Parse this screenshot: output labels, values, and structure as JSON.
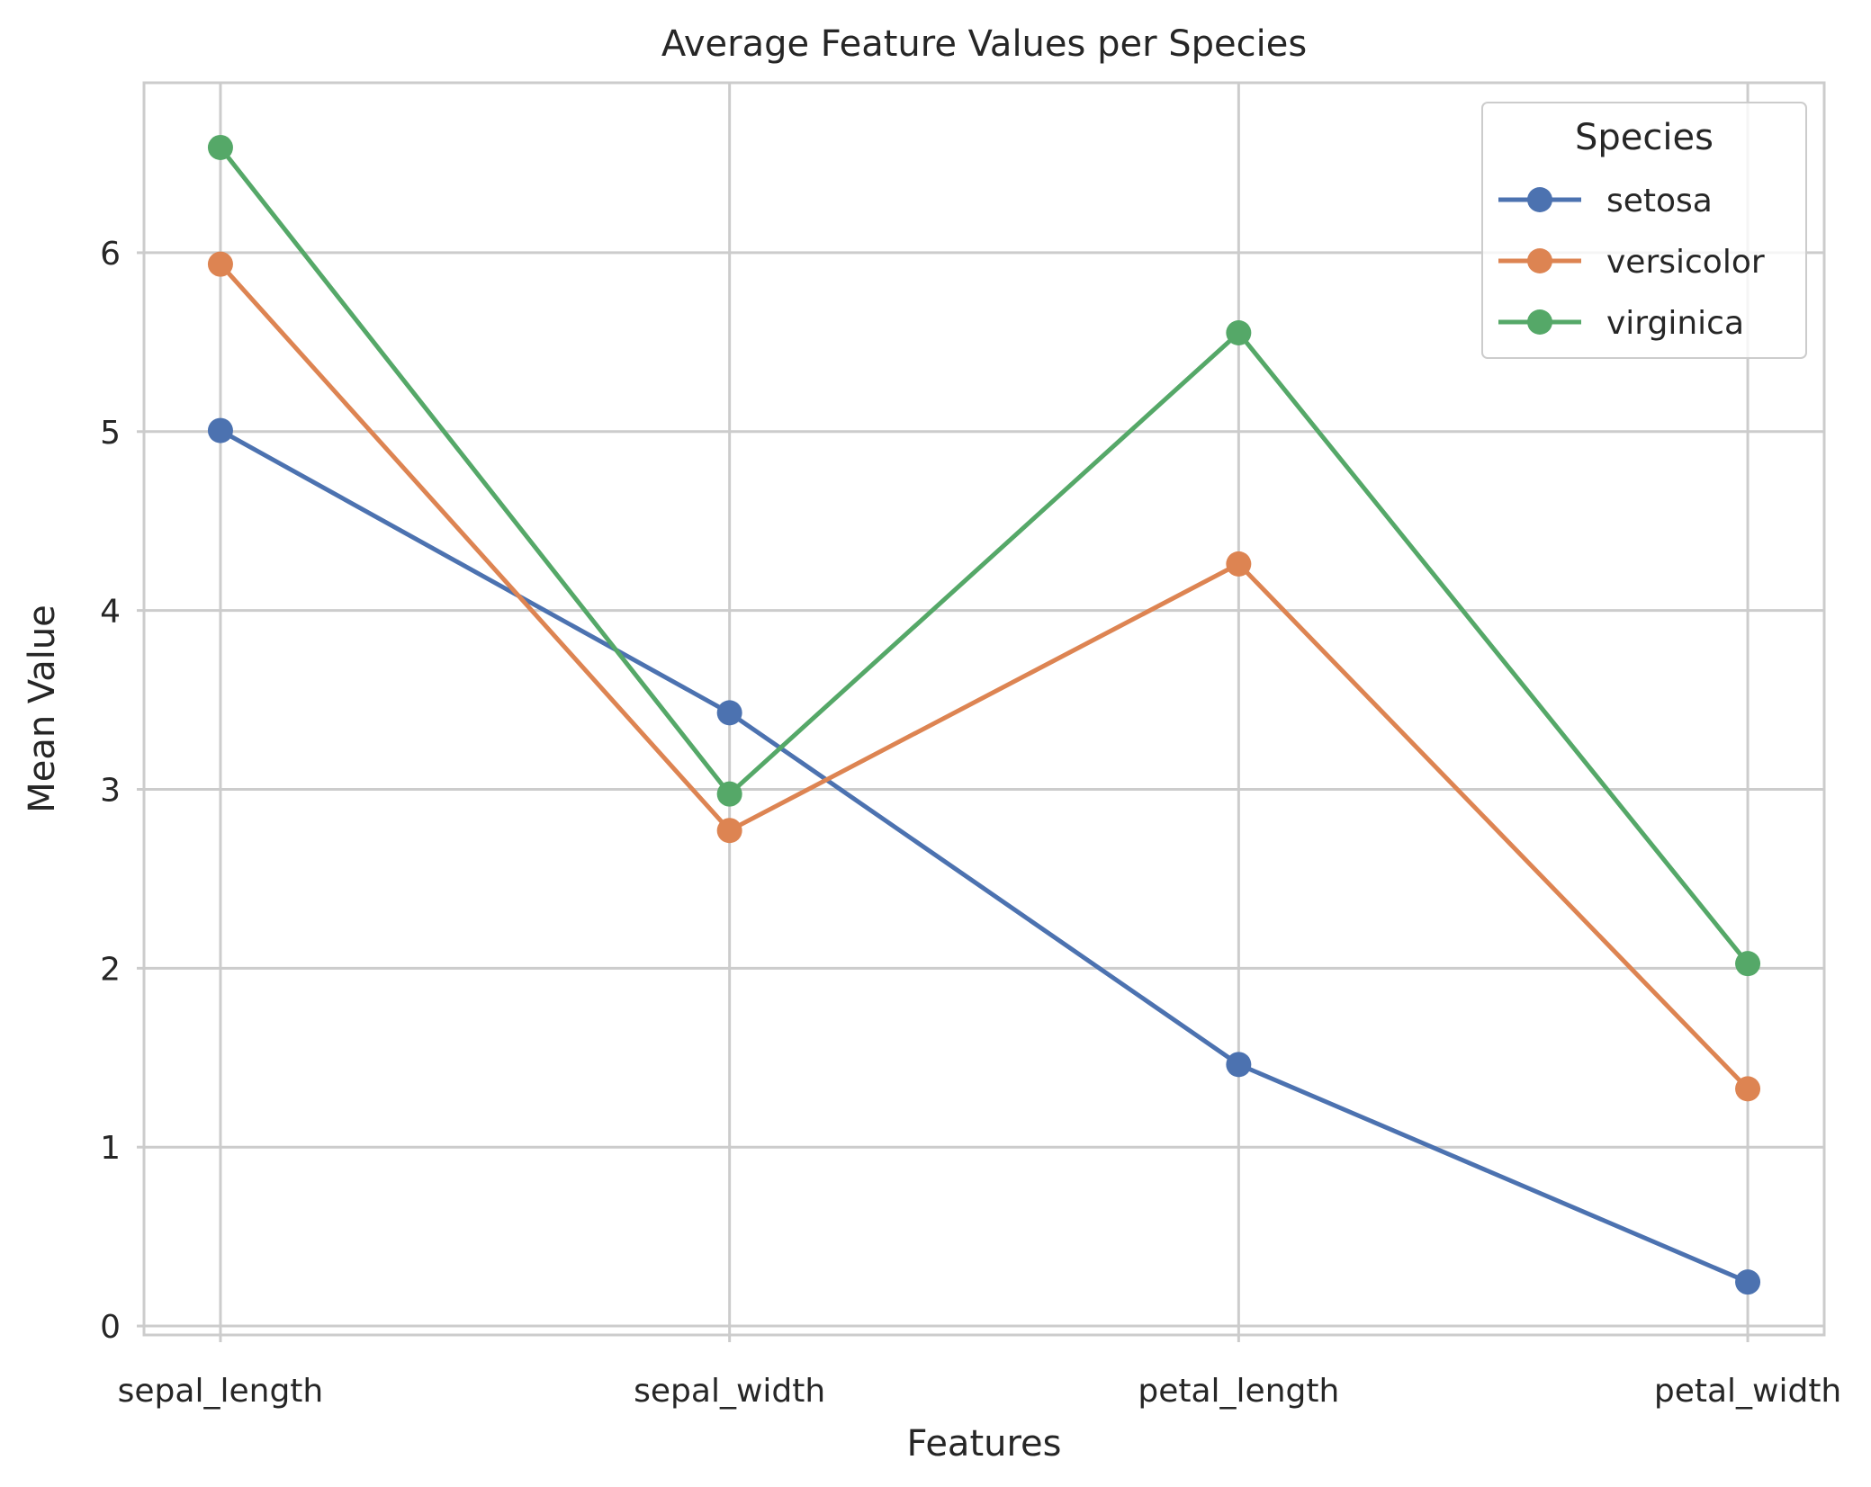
{
  "chart_data": {
    "type": "line",
    "title": "Average Feature Values per Species",
    "xlabel": "Features",
    "ylabel": "Mean Value",
    "categories": [
      "sepal_length",
      "sepal_width",
      "petal_length",
      "petal_width"
    ],
    "ylim": [
      -0.05,
      6.95
    ],
    "yticks": [
      0,
      1,
      2,
      3,
      4,
      5,
      6
    ],
    "grid": true,
    "legend": {
      "title": "Species",
      "position": "top-right"
    },
    "series": [
      {
        "name": "setosa",
        "color": "#4c72b0",
        "values": [
          5.006,
          3.428,
          1.462,
          0.246
        ]
      },
      {
        "name": "versicolor",
        "color": "#dd8452",
        "values": [
          5.936,
          2.77,
          4.26,
          1.326
        ]
      },
      {
        "name": "virginica",
        "color": "#55a868",
        "values": [
          6.588,
          2.974,
          5.552,
          2.026
        ]
      }
    ]
  }
}
